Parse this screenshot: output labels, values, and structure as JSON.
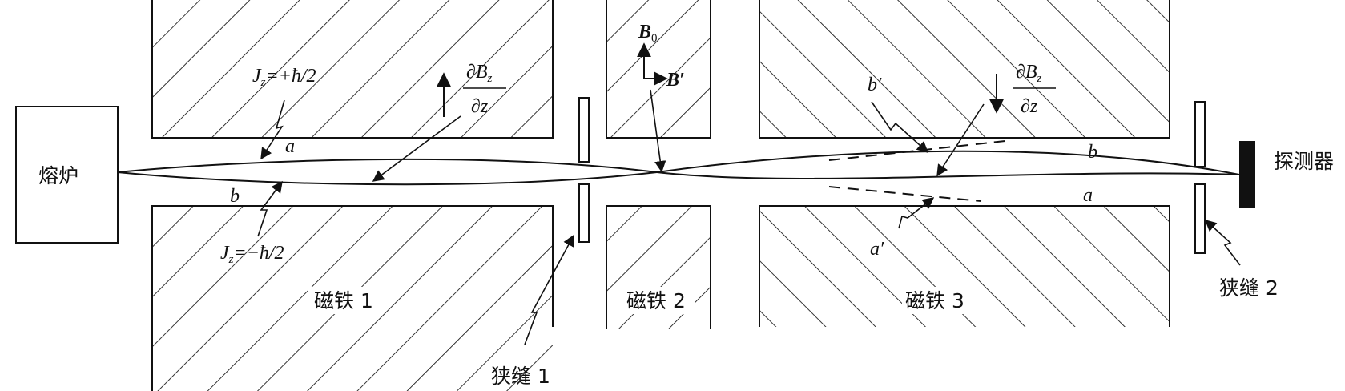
{
  "labels": {
    "furnace": "熔炉",
    "detector": "探测器",
    "magnet1": "磁铁 1",
    "magnet2": "磁铁 2",
    "magnet3": "磁铁 3",
    "slit1": "狭缝 1",
    "slit2": "狭缝 2",
    "beam_a_1": "a",
    "beam_b_1": "b",
    "beam_b_3": "b",
    "beam_a_3": "a",
    "b_prime": "b′",
    "a_prime": "a′",
    "jz_plus": "J_z=+ħ/2",
    "jz_minus": "J_z=−ħ/2",
    "grad_num": "∂B_z",
    "grad_den": "∂z",
    "b0": "B_0",
    "b_field_prime": "B′"
  }
}
